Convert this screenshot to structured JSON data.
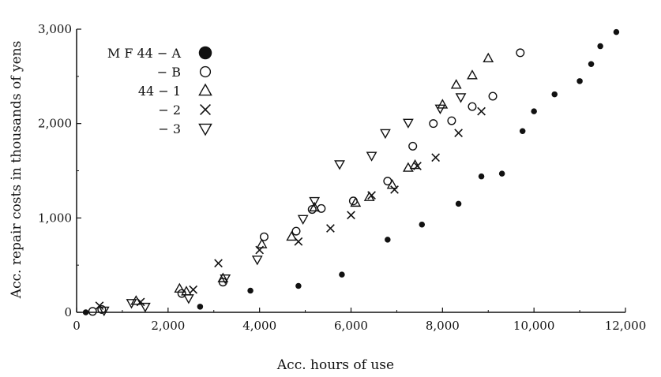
{
  "chart_data": {
    "type": "scatter",
    "title": "",
    "xlabel": "Acc. hours of use",
    "ylabel": "Acc. repair costs in thousands of yens",
    "xlim": [
      0,
      12000
    ],
    "ylim": [
      0,
      3000
    ],
    "x_ticks": [
      0,
      2000,
      4000,
      6000,
      8000,
      10000,
      12000
    ],
    "x_tick_labels": [
      "0",
      "2,000",
      "4,000",
      "6,000",
      "8,000",
      "10,000",
      "12,000"
    ],
    "y_ticks": [
      0,
      1000,
      2000,
      3000
    ],
    "y_tick_labels": [
      "0",
      "1,000",
      "2,000",
      "3,000"
    ],
    "grid": false,
    "legend_position": "top-left",
    "series": [
      {
        "name": "M F 44 − A",
        "marker": "filled-circle",
        "points": [
          [
            200,
            0
          ],
          [
            2700,
            60
          ],
          [
            3800,
            230
          ],
          [
            4850,
            280
          ],
          [
            5800,
            400
          ],
          [
            6800,
            770
          ],
          [
            7550,
            930
          ],
          [
            8350,
            1150
          ],
          [
            8850,
            1440
          ],
          [
            9300,
            1470
          ],
          [
            9750,
            1920
          ],
          [
            10000,
            2130
          ],
          [
            10450,
            2310
          ],
          [
            11000,
            2450
          ],
          [
            11250,
            2630
          ],
          [
            11450,
            2820
          ],
          [
            11800,
            2970
          ]
        ]
      },
      {
        "name": "− B",
        "marker": "open-circle",
        "points": [
          [
            350,
            10
          ],
          [
            550,
            30
          ],
          [
            2300,
            200
          ],
          [
            3200,
            320
          ],
          [
            4100,
            800
          ],
          [
            4800,
            860
          ],
          [
            5150,
            1090
          ],
          [
            5350,
            1100
          ],
          [
            6050,
            1180
          ],
          [
            6800,
            1390
          ],
          [
            7350,
            1760
          ],
          [
            7800,
            2000
          ],
          [
            8200,
            2030
          ],
          [
            8650,
            2180
          ],
          [
            9100,
            2290
          ],
          [
            9700,
            2750
          ]
        ]
      },
      {
        "name": "44 − 1",
        "marker": "triangle-up",
        "points": [
          [
            1300,
            120
          ],
          [
            2250,
            250
          ],
          [
            2400,
            220
          ],
          [
            3200,
            360
          ],
          [
            4050,
            720
          ],
          [
            4700,
            800
          ],
          [
            5200,
            1110
          ],
          [
            6100,
            1160
          ],
          [
            6400,
            1220
          ],
          [
            6900,
            1350
          ],
          [
            7250,
            1530
          ],
          [
            7400,
            1560
          ],
          [
            8000,
            2200
          ],
          [
            8300,
            2410
          ],
          [
            8650,
            2510
          ],
          [
            9000,
            2690
          ]
        ]
      },
      {
        "name": "− 2",
        "marker": "x",
        "points": [
          [
            500,
            70
          ],
          [
            1400,
            110
          ],
          [
            2550,
            240
          ],
          [
            3100,
            520
          ],
          [
            4000,
            660
          ],
          [
            4850,
            750
          ],
          [
            5550,
            890
          ],
          [
            6000,
            1030
          ],
          [
            6450,
            1240
          ],
          [
            6950,
            1300
          ],
          [
            7450,
            1550
          ],
          [
            7850,
            1640
          ],
          [
            8350,
            1900
          ],
          [
            8850,
            2130
          ]
        ]
      },
      {
        "name": "− 3",
        "marker": "triangle-down",
        "points": [
          [
            600,
            20
          ],
          [
            1200,
            100
          ],
          [
            1500,
            60
          ],
          [
            2450,
            150
          ],
          [
            3250,
            360
          ],
          [
            3950,
            560
          ],
          [
            4950,
            990
          ],
          [
            5200,
            1180
          ],
          [
            5750,
            1570
          ],
          [
            6450,
            1660
          ],
          [
            6750,
            1900
          ],
          [
            7250,
            2010
          ],
          [
            7950,
            2160
          ],
          [
            8400,
            2280
          ]
        ]
      }
    ]
  }
}
